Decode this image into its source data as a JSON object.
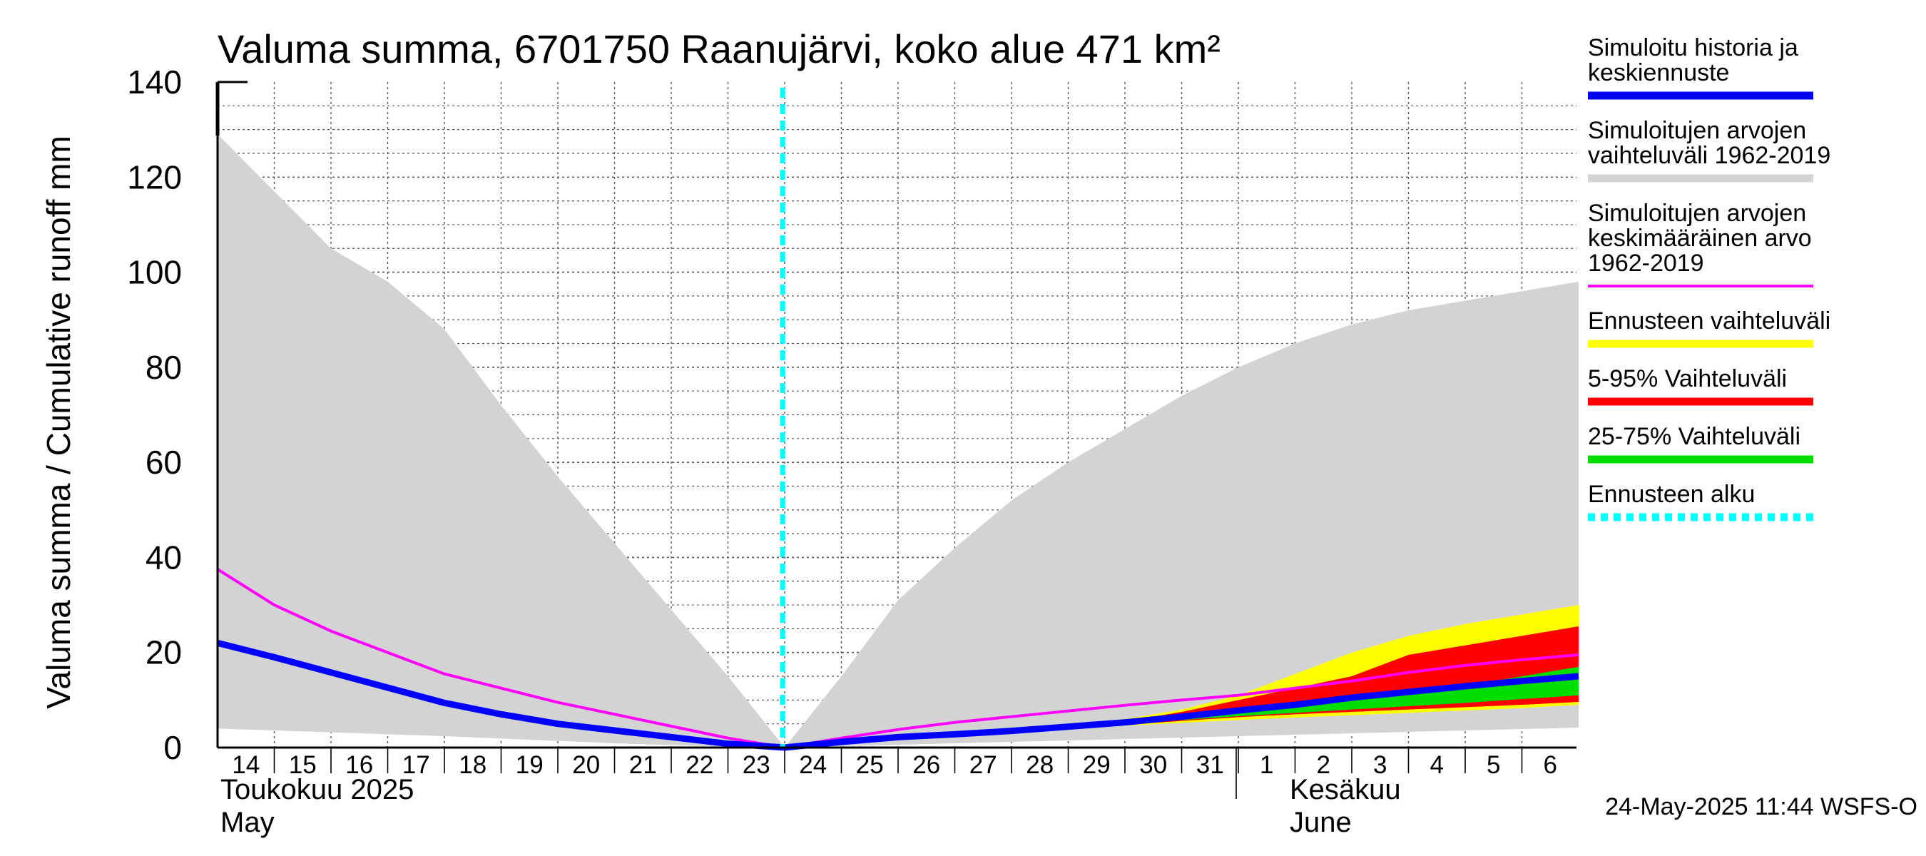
{
  "chart_data": {
    "type": "area",
    "title": "Valuma summa, 6701750 Raanujärvi, koko alue 471 km²",
    "ylabel": "Valuma summa / Cumulative runoff    mm",
    "ylim": [
      0,
      140
    ],
    "yticks": [
      0,
      20,
      40,
      60,
      80,
      100,
      120,
      140
    ],
    "x_day_labels": [
      "14",
      "15",
      "16",
      "17",
      "18",
      "19",
      "20",
      "21",
      "22",
      "23",
      "24",
      "25",
      "26",
      "27",
      "28",
      "29",
      "30",
      "31",
      "1",
      "2",
      "3",
      "4",
      "5",
      "6"
    ],
    "x_dates": [
      "2025-05-14",
      "2025-05-15",
      "2025-05-16",
      "2025-05-17",
      "2025-05-18",
      "2025-05-19",
      "2025-05-20",
      "2025-05-21",
      "2025-05-22",
      "2025-05-23",
      "2025-05-24",
      "2025-05-25",
      "2025-05-26",
      "2025-05-27",
      "2025-05-28",
      "2025-05-29",
      "2025-05-30",
      "2025-05-31",
      "2025-06-01",
      "2025-06-02",
      "2025-06-03",
      "2025-06-04",
      "2025-06-05",
      "2025-06-06",
      "2025-06-07"
    ],
    "month_labels": [
      {
        "line1": "Toukokuu  2025",
        "line2": "May"
      },
      {
        "line1": "Kesäkuu",
        "line2": "June"
      }
    ],
    "forecast_start": "2025-05-24",
    "grid": true,
    "legend_position": "right",
    "series": [
      {
        "name": "Simuloitujen arvojen vaihteluväli 1962-2019",
        "kind": "band",
        "color": "#d3d3d3",
        "x": [
          "2025-05-14",
          "2025-05-15",
          "2025-05-16",
          "2025-05-17",
          "2025-05-18",
          "2025-05-19",
          "2025-05-20",
          "2025-05-21",
          "2025-05-22",
          "2025-05-23",
          "2025-05-24",
          "2025-05-25",
          "2025-05-26",
          "2025-05-27",
          "2025-05-28",
          "2025-05-29",
          "2025-05-30",
          "2025-05-31",
          "2025-06-01",
          "2025-06-02",
          "2025-06-03",
          "2025-06-04",
          "2025-06-05",
          "2025-06-06",
          "2025-06-07"
        ],
        "upper": [
          129,
          117,
          105,
          98,
          88,
          72,
          57,
          43,
          29,
          15,
          0,
          15,
          31,
          42,
          52,
          60,
          67,
          74,
          80,
          85,
          89,
          92,
          94,
          96,
          98
        ],
        "lower": [
          4,
          3.6,
          3.2,
          2.8,
          2.4,
          1.9,
          1.4,
          0.9,
          0.5,
          0.2,
          0,
          0.3,
          0.6,
          0.9,
          1.2,
          1.5,
          1.8,
          2.1,
          2.4,
          2.7,
          3,
          3.3,
          3.6,
          3.9,
          4.2
        ]
      },
      {
        "name": "Ennusteen vaihteluväli",
        "kind": "band",
        "color": "#ffff00",
        "x": [
          "2025-05-24",
          "2025-05-25",
          "2025-05-26",
          "2025-05-27",
          "2025-05-28",
          "2025-05-29",
          "2025-05-30",
          "2025-05-31",
          "2025-06-01",
          "2025-06-02",
          "2025-06-03",
          "2025-06-04",
          "2025-06-05",
          "2025-06-06",
          "2025-06-07"
        ],
        "upper": [
          0,
          1.2,
          2.4,
          3,
          3.6,
          4.5,
          6,
          8,
          11,
          15.5,
          20,
          23.5,
          26,
          28,
          30
        ],
        "lower": [
          0,
          1,
          2,
          2.5,
          3.2,
          4,
          4.6,
          5.2,
          5.8,
          6.3,
          6.8,
          7.3,
          7.8,
          8.3,
          9
        ]
      },
      {
        "name": "5-95% Vaihteluväli",
        "kind": "band",
        "color": "#ff0000",
        "x": [
          "2025-05-24",
          "2025-05-25",
          "2025-05-26",
          "2025-05-27",
          "2025-05-28",
          "2025-05-29",
          "2025-05-30",
          "2025-05-31",
          "2025-06-01",
          "2025-06-02",
          "2025-06-03",
          "2025-06-04",
          "2025-06-05",
          "2025-06-06",
          "2025-06-07"
        ],
        "upper": [
          0,
          1.1,
          2.2,
          2.9,
          3.5,
          4.3,
          5.5,
          7.5,
          10,
          12.5,
          15,
          19.5,
          21.5,
          23.5,
          25.5
        ],
        "lower": [
          0,
          1,
          2,
          2.6,
          3.3,
          4.1,
          4.8,
          5.6,
          6.4,
          7,
          7.5,
          8,
          8.5,
          9,
          9.6
        ]
      },
      {
        "name": "25-75% Vaihteluväli",
        "kind": "band",
        "color": "#00dd00",
        "x": [
          "2025-05-24",
          "2025-05-25",
          "2025-05-26",
          "2025-05-27",
          "2025-05-28",
          "2025-05-29",
          "2025-05-30",
          "2025-05-31",
          "2025-06-01",
          "2025-06-02",
          "2025-06-03",
          "2025-06-04",
          "2025-06-05",
          "2025-06-06",
          "2025-06-07"
        ],
        "upper": [
          0,
          1.1,
          2.1,
          2.8,
          3.5,
          4.4,
          5.3,
          6.3,
          7.5,
          8.7,
          10,
          11.5,
          13,
          15,
          17
        ],
        "lower": [
          0,
          1,
          2,
          2.7,
          3.4,
          4.2,
          5,
          5.8,
          6.6,
          7.3,
          8,
          8.7,
          9.4,
          10.2,
          11
        ]
      },
      {
        "name": "Simuloitujen arvojen keskimääräinen arvo 1962-2019",
        "kind": "line",
        "color": "#ff00ff",
        "x": [
          "2025-05-14",
          "2025-05-15",
          "2025-05-16",
          "2025-05-17",
          "2025-05-18",
          "2025-05-19",
          "2025-05-20",
          "2025-05-21",
          "2025-05-22",
          "2025-05-23",
          "2025-05-24",
          "2025-05-25",
          "2025-05-26",
          "2025-05-27",
          "2025-05-28",
          "2025-05-29",
          "2025-05-30",
          "2025-05-31",
          "2025-06-01",
          "2025-06-02",
          "2025-06-03",
          "2025-06-04",
          "2025-06-05",
          "2025-06-06",
          "2025-06-07"
        ],
        "y": [
          37.5,
          30,
          24.5,
          20,
          15.5,
          12.5,
          9.5,
          7,
          4.5,
          2,
          0,
          2,
          3.8,
          5.3,
          6.5,
          7.7,
          8.9,
          10,
          11,
          12.5,
          14,
          15.8,
          17.3,
          18.5,
          19.5
        ]
      },
      {
        "name": "Simuloitu historia ja keskiennuste",
        "kind": "line",
        "color": "#0000ff",
        "x": [
          "2025-05-14",
          "2025-05-15",
          "2025-05-16",
          "2025-05-17",
          "2025-05-18",
          "2025-05-19",
          "2025-05-20",
          "2025-05-21",
          "2025-05-22",
          "2025-05-23",
          "2025-05-24",
          "2025-05-25",
          "2025-05-26",
          "2025-05-27",
          "2025-05-28",
          "2025-05-29",
          "2025-05-30",
          "2025-05-31",
          "2025-06-01",
          "2025-06-02",
          "2025-06-03",
          "2025-06-04",
          "2025-06-05",
          "2025-06-06",
          "2025-06-07"
        ],
        "y": [
          22,
          19,
          15.8,
          12.6,
          9.4,
          7,
          5,
          3.6,
          2.2,
          0.8,
          0,
          1.2,
          2.2,
          2.8,
          3.5,
          4.4,
          5.3,
          6.5,
          7.8,
          9,
          10.5,
          11.7,
          12.9,
          14,
          15
        ]
      }
    ]
  },
  "legend": [
    {
      "lines": [
        "Simuloitu historia ja",
        "keskiennuste"
      ],
      "color": "#0000ff",
      "style": "solid"
    },
    {
      "lines": [
        "Simuloitujen arvojen",
        "vaihteluväli 1962-2019"
      ],
      "color": "#d3d3d3",
      "style": "solid"
    },
    {
      "lines": [
        "Simuloitujen arvojen",
        "keskimääräinen arvo",
        "   1962-2019"
      ],
      "color": "#ff00ff",
      "style": "thin"
    },
    {
      "lines": [
        "Ennusteen vaihteluväli"
      ],
      "color": "#ffff00",
      "style": "solid"
    },
    {
      "lines": [
        "5-95% Vaihteluväli"
      ],
      "color": "#ff0000",
      "style": "solid"
    },
    {
      "lines": [
        "25-75% Vaihteluväli"
      ],
      "color": "#00dd00",
      "style": "solid"
    },
    {
      "lines": [
        "Ennusteen alku"
      ],
      "color": "#00ffff",
      "style": "dashed"
    }
  ],
  "forecast_marker_color": "#00ffff",
  "timestamp": "24-May-2025 11:44 WSFS-O"
}
